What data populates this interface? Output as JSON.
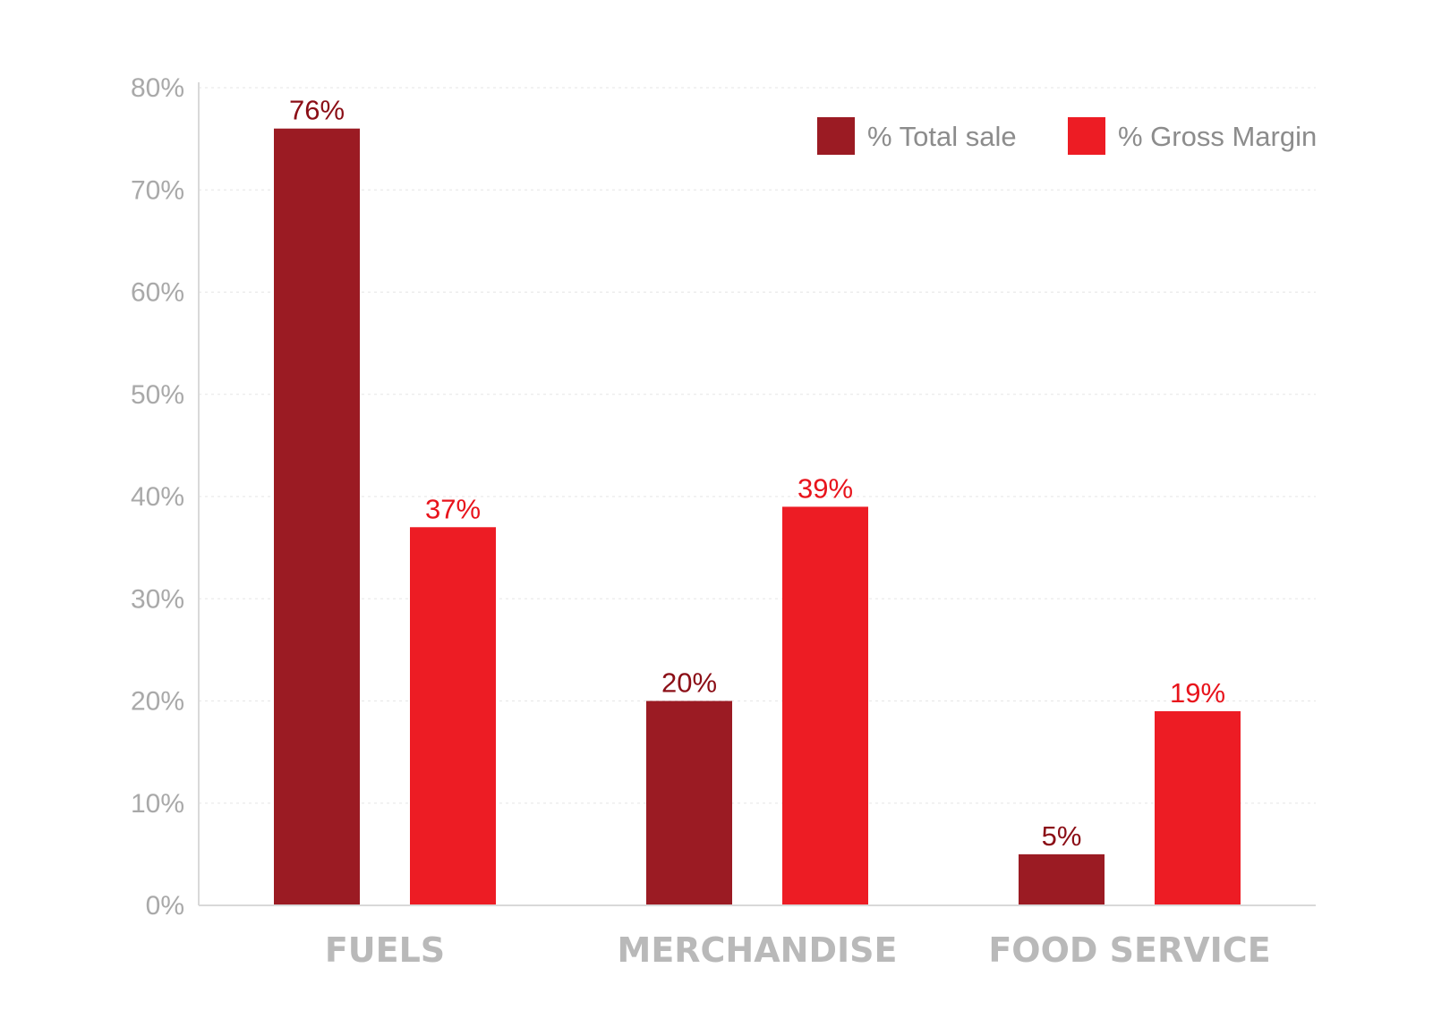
{
  "chart_data": {
    "type": "bar",
    "categories": [
      "FUELS",
      "MERCHANDISE",
      "FOOD SERVICE"
    ],
    "series": [
      {
        "name": "% Total sale",
        "values": [
          76,
          20,
          5
        ],
        "color": "#9b1b23"
      },
      {
        "name": "% Gross Margin",
        "values": [
          37,
          39,
          19
        ],
        "color": "#ed1c24"
      }
    ],
    "data_labels": [
      [
        "76%",
        "20%",
        "5%"
      ],
      [
        "37%",
        "39%",
        "19%"
      ]
    ],
    "yticks": [
      "0%",
      "10%",
      "20%",
      "30%",
      "40%",
      "50%",
      "60%",
      "70%",
      "80%"
    ],
    "ylim": [
      0,
      80
    ],
    "grid": true,
    "legend_position": "top-right",
    "label_colors": [
      "#8b0e16",
      "#e8141c"
    ]
  }
}
